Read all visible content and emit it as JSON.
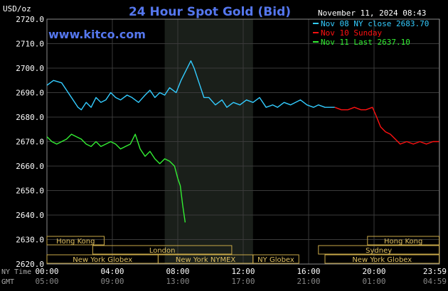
{
  "chart_data": {
    "type": "line",
    "title": "24 Hour Spot Gold (Bid)",
    "units_label": "USD/oz",
    "watermark": "www.kitco.com",
    "date_label": "November 11, 2024 08:43",
    "ylim": [
      2620,
      2720
    ],
    "yticks": [
      "2720.0",
      "2710.0",
      "2700.0",
      "2690.0",
      "2680.0",
      "2670.0",
      "2660.0",
      "2650.0",
      "2640.0",
      "2630.0",
      "2620.0"
    ],
    "ytick_values": [
      2720,
      2710,
      2700,
      2690,
      2680,
      2670,
      2660,
      2650,
      2640,
      2630,
      2620
    ],
    "x_axis": {
      "row1_label": "NY Time",
      "row2_label": "GMT",
      "ny_ticks": [
        "00:00",
        "04:00",
        "08:00",
        "12:00",
        "16:00",
        "20:00",
        "23:59"
      ],
      "gmt_ticks": [
        "05:00",
        "09:00",
        "13:00",
        "17:00",
        "21:00",
        "01:00",
        "04:59"
      ],
      "tick_hours": [
        0,
        4,
        8,
        12,
        16,
        20,
        23.98
      ]
    },
    "series": [
      {
        "name": "Nov 08 NY close 2683.70",
        "color": "#33ccff",
        "x": [
          0,
          0.4,
          0.9,
          1.3,
          1.6,
          1.9,
          2.1,
          2.4,
          2.7,
          3.0,
          3.3,
          3.6,
          3.9,
          4.2,
          4.5,
          4.9,
          5.2,
          5.6,
          6.0,
          6.3,
          6.6,
          6.9,
          7.2,
          7.5,
          7.9,
          8.2,
          8.5,
          8.8,
          9.0,
          9.3,
          9.6,
          9.9,
          10.3,
          10.7,
          11.0,
          11.4,
          11.8,
          12.2,
          12.6,
          13.0,
          13.4,
          13.8,
          14.1,
          14.5,
          14.9,
          15.2,
          15.5,
          15.9,
          16.3,
          16.6,
          17.0,
          17.4,
          17.6
        ],
        "y": [
          2693,
          2695,
          2694,
          2690,
          2687,
          2684,
          2683,
          2686,
          2684,
          2688,
          2686,
          2687,
          2690,
          2688,
          2687,
          2689,
          2688,
          2686,
          2689,
          2691,
          2688,
          2690,
          2689,
          2692,
          2690,
          2695,
          2699,
          2703,
          2700,
          2694,
          2688,
          2688,
          2685,
          2687,
          2684,
          2686,
          2685,
          2687,
          2686,
          2688,
          2684,
          2685,
          2684,
          2686,
          2685,
          2686,
          2687,
          2685,
          2684,
          2685,
          2684,
          2684,
          2684
        ],
        "color_key": "cyan"
      },
      {
        "name": "Nov 10 Sunday",
        "color": "#ff1111",
        "x": [
          17.6,
          18.0,
          18.4,
          18.8,
          19.2,
          19.5,
          19.9,
          20.1,
          20.4,
          20.7,
          21.0,
          21.3,
          21.6,
          22.0,
          22.4,
          22.8,
          23.2,
          23.6,
          23.98
        ],
        "y": [
          2684,
          2683,
          2683,
          2684,
          2683,
          2683,
          2684,
          2681,
          2676,
          2674,
          2673,
          2671,
          2669,
          2670,
          2669,
          2670,
          2669,
          2670,
          2670
        ],
        "color_key": "red"
      },
      {
        "name": "Nov 11 Last 2637.10",
        "color": "#33ee33",
        "x": [
          0,
          0.3,
          0.6,
          0.9,
          1.2,
          1.5,
          1.8,
          2.1,
          2.4,
          2.7,
          3.0,
          3.3,
          3.6,
          3.9,
          4.2,
          4.5,
          4.8,
          5.1,
          5.4,
          5.7,
          6.0,
          6.3,
          6.6,
          6.9,
          7.2,
          7.5,
          7.8,
          8.0,
          8.15,
          8.3,
          8.45
        ],
        "y": [
          2672,
          2670,
          2669,
          2670,
          2671,
          2673,
          2672,
          2671,
          2669,
          2668,
          2670,
          2668,
          2669,
          2670,
          2669,
          2667,
          2668,
          2669,
          2673,
          2667,
          2664,
          2666,
          2663,
          2661,
          2663,
          2662,
          2660,
          2655,
          2652,
          2644,
          2637
        ],
        "color_key": "green"
      }
    ],
    "sessions": [
      {
        "label": "Hong Kong",
        "row": 1,
        "start": 0,
        "end": 3.5
      },
      {
        "label": "Hong Kong",
        "row": 1,
        "start": 19.6,
        "end": 23.98
      },
      {
        "label": "London",
        "row": 2,
        "start": 2.8,
        "end": 11.3
      },
      {
        "label": "Sydney",
        "row": 2,
        "start": 16.6,
        "end": 23.98
      },
      {
        "label": "New York Globex",
        "row": 3,
        "start": 0,
        "end": 6.8
      },
      {
        "label": "New York NYMEX",
        "row": 3,
        "start": 6.8,
        "end": 12.6
      },
      {
        "label": "NY Globex",
        "row": 3,
        "start": 12.6,
        "end": 15.4
      },
      {
        "label": "New York Globex",
        "row": 3,
        "start": 17.0,
        "end": 23.98
      }
    ],
    "highlight_hours": [
      7.2,
      12.6
    ],
    "grid": true,
    "legend_position": "top-right"
  },
  "colors": {
    "background": "#000000",
    "grid": "#3a3a3a",
    "plot_frame": "#8a8a8a",
    "title": "#5577ee",
    "session_border": "#c8a848",
    "session_text": "#e0c060",
    "highlight_band": "#1a1f1a"
  }
}
